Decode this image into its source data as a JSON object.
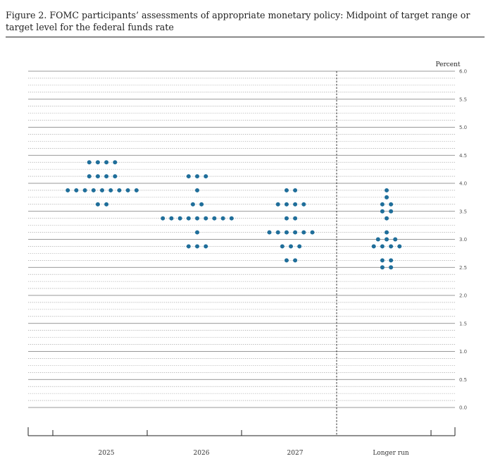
{
  "figure": {
    "title": "Figure 2.  FOMC participants’ assessments of appropriate monetary policy:  Midpoint of target range or target level for the federal funds rate"
  },
  "chart_data": {
    "type": "scatter",
    "title": "Figure 2.  FOMC participants’ assessments of appropriate monetary policy:  Midpoint of target range or target level for the federal funds rate",
    "ylabel": "Percent",
    "ylim": [
      0,
      6
    ],
    "y_ticks": [
      "6.0",
      "5.5",
      "5.0",
      "4.5",
      "4.0",
      "3.5",
      "3.0",
      "2.5",
      "2.0",
      "1.5",
      "1.0",
      "0.5",
      "0.0"
    ],
    "categories": [
      "2025",
      "2026",
      "2027",
      "Longer run"
    ],
    "dot_color": "#1f6e9a",
    "grid": "dotted lines every 0.125, solid lines every 0.5",
    "divider": "dashed vertical line between 2027 and Longer run",
    "dots": [
      {
        "category": "2025",
        "counts": [
          {
            "rate": 4.375,
            "n": 4
          },
          {
            "rate": 4.125,
            "n": 4
          },
          {
            "rate": 3.875,
            "n": 9
          },
          {
            "rate": 3.625,
            "n": 2
          }
        ]
      },
      {
        "category": "2026",
        "counts": [
          {
            "rate": 4.125,
            "n": 3
          },
          {
            "rate": 3.875,
            "n": 1
          },
          {
            "rate": 3.625,
            "n": 2
          },
          {
            "rate": 3.375,
            "n": 9
          },
          {
            "rate": 3.125,
            "n": 1
          },
          {
            "rate": 2.875,
            "n": 3
          }
        ]
      },
      {
        "category": "2027",
        "counts": [
          {
            "rate": 3.875,
            "n": 2
          },
          {
            "rate": 3.625,
            "n": 4
          },
          {
            "rate": 3.375,
            "n": 2
          },
          {
            "rate": 3.125,
            "n": 6
          },
          {
            "rate": 2.875,
            "n": 3
          },
          {
            "rate": 2.625,
            "n": 2
          }
        ]
      },
      {
        "category": "Longer run",
        "counts": [
          {
            "rate": 3.875,
            "n": 1
          },
          {
            "rate": 3.75,
            "n": 1
          },
          {
            "rate": 3.625,
            "n": 2
          },
          {
            "rate": 3.5,
            "n": 2
          },
          {
            "rate": 3.375,
            "n": 1
          },
          {
            "rate": 3.125,
            "n": 1
          },
          {
            "rate": 3.0,
            "n": 3
          },
          {
            "rate": 2.875,
            "n": 4
          },
          {
            "rate": 2.625,
            "n": 2
          },
          {
            "rate": 2.5,
            "n": 2
          }
        ]
      }
    ]
  }
}
